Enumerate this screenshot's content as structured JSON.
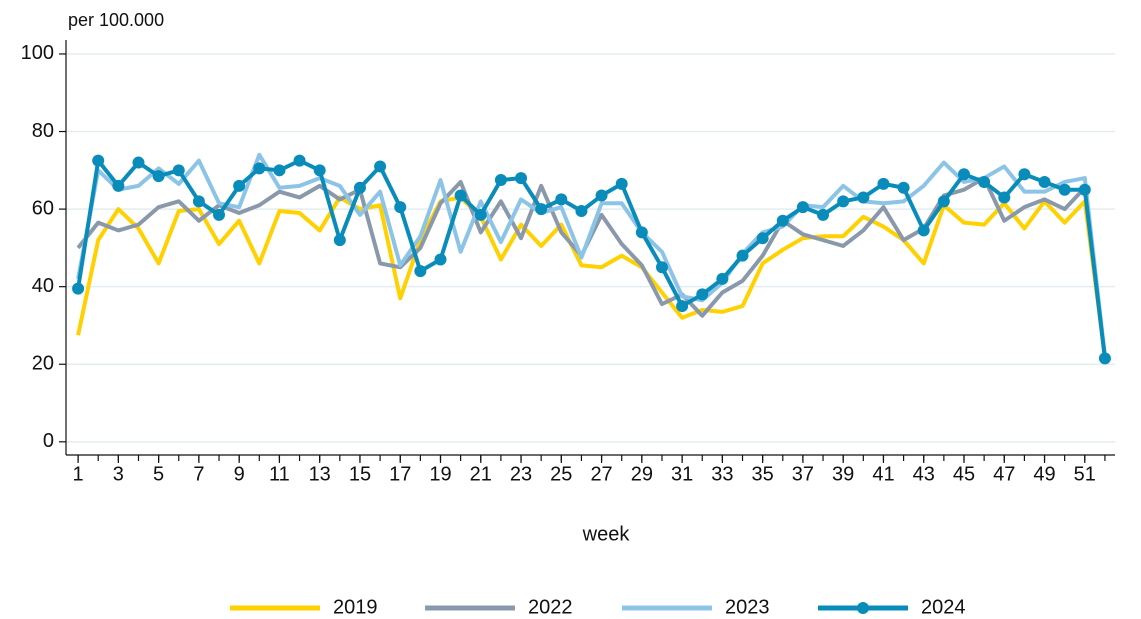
{
  "chart_data": {
    "type": "line",
    "y_axis_label": "per 100.000",
    "x_axis_label": "week",
    "x": [
      1,
      2,
      3,
      4,
      5,
      6,
      7,
      8,
      9,
      10,
      11,
      12,
      13,
      14,
      15,
      16,
      17,
      18,
      19,
      20,
      21,
      22,
      23,
      24,
      25,
      26,
      27,
      28,
      29,
      30,
      31,
      32,
      33,
      34,
      35,
      36,
      37,
      38,
      39,
      40,
      41,
      42,
      43,
      44,
      45,
      46,
      47,
      48,
      49,
      50,
      51,
      52
    ],
    "series": [
      {
        "name": "2019",
        "color": "#ffd100",
        "markers": false,
        "values": [
          27.5,
          52,
          60,
          55,
          46,
          59.5,
          60,
          51,
          57,
          46,
          59.5,
          59,
          54.5,
          63,
          60,
          61,
          37,
          52,
          62,
          63,
          58,
          47,
          56,
          50.5,
          56,
          45.5,
          45,
          48,
          45,
          38.5,
          32,
          34,
          33.5,
          35,
          46,
          49.5,
          52.5,
          53,
          53,
          58,
          55.5,
          52,
          46,
          61,
          56.5,
          56,
          61.5,
          55,
          62,
          56.5,
          62,
          22
        ]
      },
      {
        "name": "2022",
        "color": "#8a98ab",
        "markers": false,
        "values": [
          50,
          56.5,
          54.5,
          56,
          60.5,
          62,
          57,
          61,
          59,
          61,
          64.5,
          63,
          66,
          62.5,
          65,
          46,
          45,
          50,
          61.5,
          67,
          54,
          62,
          52.5,
          66,
          54,
          48,
          58.5,
          51,
          45.5,
          35.5,
          38,
          32.5,
          38.5,
          41.5,
          48,
          57,
          53.5,
          52,
          50.5,
          54.5,
          60.5,
          52,
          55,
          63.5,
          65,
          68,
          57,
          60.5,
          62.5,
          60,
          65.5,
          22
        ]
      },
      {
        "name": "2023",
        "color": "#8cc4e8",
        "markers": false,
        "values": [
          42,
          70,
          65,
          66,
          70.5,
          66.5,
          72.5,
          61.5,
          60.5,
          74,
          65.5,
          66,
          68,
          66,
          58.5,
          64.5,
          45.5,
          53,
          67.5,
          49,
          62,
          51.5,
          62.5,
          59,
          60.5,
          47.5,
          61.5,
          61.5,
          54,
          49,
          37.5,
          36.5,
          41,
          48.5,
          54,
          55.5,
          61,
          60.5,
          66,
          62,
          61.5,
          62,
          66,
          72,
          67,
          68,
          71,
          64.5,
          64.5,
          67,
          68,
          22
        ]
      },
      {
        "name": "2024",
        "color": "#0a8cbb",
        "markers": true,
        "values": [
          39.5,
          72.5,
          66,
          72,
          68.5,
          70,
          62,
          58.5,
          66,
          70.5,
          70,
          72.5,
          70,
          52,
          65.5,
          71,
          60.5,
          44,
          47,
          63.5,
          58.5,
          67.5,
          68,
          60,
          62.5,
          59.5,
          63.5,
          66.5,
          54,
          45,
          35,
          38,
          42,
          48,
          52.5,
          57,
          60.5,
          58.5,
          62,
          63,
          66.5,
          65.5,
          54.5,
          62,
          69,
          67,
          63,
          69,
          67,
          65,
          65,
          21.5
        ]
      }
    ],
    "xlim": [
      0.4,
      52.5
    ],
    "xticks": [
      1,
      3,
      5,
      7,
      9,
      11,
      13,
      15,
      17,
      19,
      21,
      23,
      25,
      27,
      29,
      31,
      33,
      35,
      37,
      39,
      41,
      43,
      45,
      47,
      49,
      51
    ],
    "xminorticks": [
      1,
      2,
      3,
      4,
      5,
      6,
      7,
      8,
      9,
      10,
      11,
      12,
      13,
      14,
      15,
      16,
      17,
      18,
      19,
      20,
      21,
      22,
      23,
      24,
      25,
      26,
      27,
      28,
      29,
      30,
      31,
      32,
      33,
      34,
      35,
      36,
      37,
      38,
      39,
      40,
      41,
      42,
      43,
      44,
      45,
      46,
      47,
      48,
      49,
      50,
      51,
      52
    ],
    "ylim": [
      -3.4,
      103.6
    ],
    "yticks": [
      0,
      20,
      40,
      60,
      80,
      100
    ],
    "grid": true,
    "legend": "bottom"
  }
}
